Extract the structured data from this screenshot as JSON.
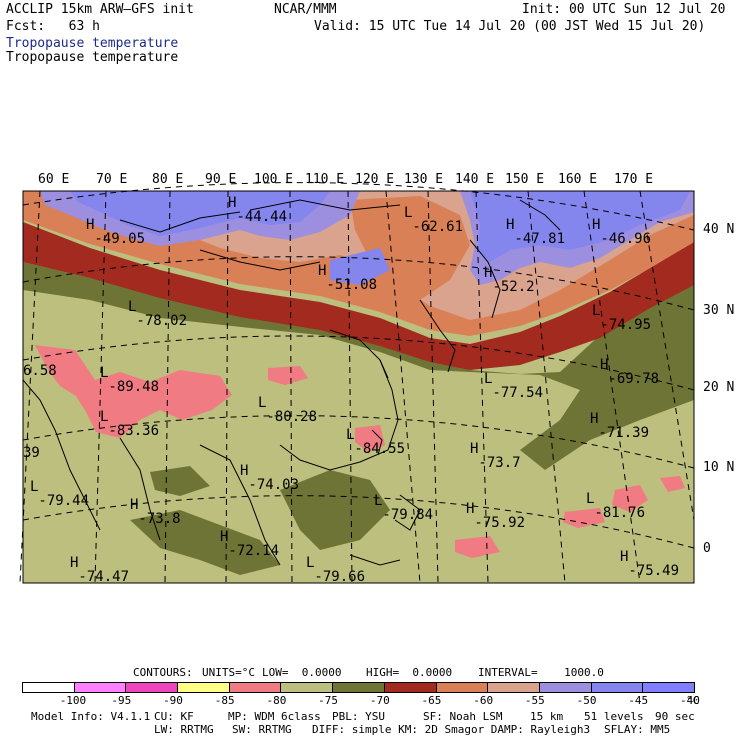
{
  "header": {
    "model_line": "ACCLIP 15km ARW–GFS init",
    "center_line": "NCAR/MMM",
    "init_line": "Init: 00 UTC Sun 12 Jul 20",
    "fcst_line": "Fcst:   63 h",
    "valid_line": "Valid: 15 UTC Tue 14 Jul 20 (00 JST Wed 15 Jul 20)",
    "field_title_1": "Tropopause temperature",
    "field_title_2": "Tropopause temperature"
  },
  "colors": {
    "title_blue": "#1c2a8c",
    "olive_dark": "#6e7435",
    "olive_light": "#bcbf7e",
    "pink": "#f07b82",
    "maroon": "#a22a1e",
    "orange": "#d98056",
    "tan": "#d9a38d",
    "lavender": "#9c8fe0",
    "blue_purple": "#8585ee",
    "water": "#8f91f2"
  },
  "map": {
    "lon_labels": [
      "60 E",
      "70 E",
      "80 E",
      "90 E",
      "100 E",
      "110 E",
      "120 E",
      "130 E",
      "140 E",
      "150 E",
      "160 E",
      "170 E"
    ],
    "lat_labels": [
      "40 N",
      "30 N",
      "20 N",
      "10 N",
      "0"
    ],
    "extrema": [
      {
        "kind": "H",
        "value": "-49.05"
      },
      {
        "kind": "H",
        "value": "-44.44"
      },
      {
        "kind": "L",
        "value": "-62.61"
      },
      {
        "kind": "H",
        "value": "-47.81"
      },
      {
        "kind": "H",
        "value": "-46.96"
      },
      {
        "kind": "H",
        "value": "-51.08"
      },
      {
        "kind": "H",
        "value": "-52.2"
      },
      {
        "kind": "L",
        "value": "-78.02"
      },
      {
        "kind": "L",
        "value": "-74.95"
      },
      {
        "kind": "L",
        "value": "-89.48"
      },
      {
        "kind": "L",
        "value": "-77.54"
      },
      {
        "kind": "H",
        "value": "-69.78"
      },
      {
        "kind": "L",
        "value": "-83.36"
      },
      {
        "kind": "L",
        "value": "-80.28"
      },
      {
        "kind": "L",
        "value": "-84.55"
      },
      {
        "kind": "H",
        "value": "-71.39"
      },
      {
        "kind": "H",
        "value": "-73.7"
      },
      {
        "kind": "H",
        "value": "-74.03"
      },
      {
        "kind": "L",
        "value": "-79.44"
      },
      {
        "kind": "H",
        "value": "-73.8"
      },
      {
        "kind": "L",
        "value": "-79.84"
      },
      {
        "kind": "H",
        "value": "-75.92"
      },
      {
        "kind": "L",
        "value": "-81.76"
      },
      {
        "kind": "H",
        "value": "-72.14"
      },
      {
        "kind": "H",
        "value": "-74.47"
      },
      {
        "kind": "L",
        "value": "-79.66"
      },
      {
        "kind": "H",
        "value": "-75.49"
      },
      {
        "kind": "",
        "value": "6.58"
      },
      {
        "kind": "",
        "value": "39"
      }
    ]
  },
  "contours_line": {
    "contours": "CONTOURS:",
    "units": "UNITS=°C",
    "low": "LOW=  0.0000",
    "high": "HIGH=  0.0000",
    "interval": "INTERVAL=    1000.0"
  },
  "legend": {
    "ticks": [
      "-100",
      "-95",
      "-90",
      "-85",
      "-80",
      "-75",
      "-70",
      "-65",
      "-60",
      "-55",
      "-50",
      "-45",
      "-40",
      "°C"
    ],
    "colors": [
      "#ffffff",
      "#ff80ff",
      "#ee44c0",
      "#ffff88",
      "#f07b82",
      "#bcbf7e",
      "#6e7435",
      "#a22a1e",
      "#d98056",
      "#d9a38d",
      "#9c8fe0",
      "#8585ee",
      "#8080ff"
    ]
  },
  "footer": {
    "line1": [
      "Model Info: V4.1.1",
      "CU: KF",
      "MP: WDM 6class",
      "PBL: YSU",
      "SF: Noah LSM",
      "15 km",
      "51 levels",
      "90 sec"
    ],
    "line2": [
      "LW: RRTMG",
      "SW: RRTMG",
      "DIFF: simple KM: 2D Smagor DAMP: Rayleigh3",
      "SFLAY: MM5"
    ]
  }
}
